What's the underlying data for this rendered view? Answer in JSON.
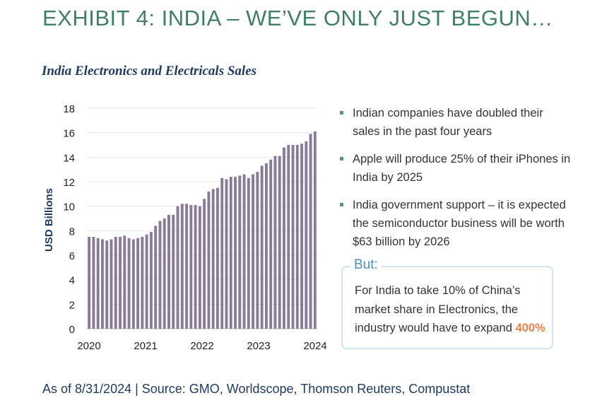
{
  "exhibit_title": "EXHIBIT 4: INDIA – WE’VE ONLY JUST BEGUN…",
  "chart_title": "India Electronics and Electricals Sales",
  "bullets": [
    "Indian companies have doubled their sales in the past four years",
    "Apple will produce 25% of their iPhones in India by 2025",
    "India government support – it is expected the semiconductor business will be worth $63 billion by 2026"
  ],
  "callout": {
    "label": "But:",
    "text": "For India to take 10% of China’s market share in Electronics, the industry would have to expand ",
    "highlight": "400%"
  },
  "footnote": "As of 8/31/2024 | Source: GMO,  Worldscope, Thomson Reuters, Compustat",
  "colors": {
    "bar": "#8a7a9a",
    "title": "#3f7f6a",
    "subtitle": "#1e3a5f",
    "highlight": "#e8834a",
    "callout_border": "#cfe6ee"
  },
  "chart_data": {
    "type": "bar",
    "ylabel": "USD Billions",
    "xlabel": "",
    "ylim": [
      0,
      18
    ],
    "y_ticks": [
      0,
      2,
      4,
      6,
      8,
      10,
      12,
      14,
      16,
      18
    ],
    "x_ticks": [
      "2020",
      "2021",
      "2022",
      "2023",
      "2024"
    ],
    "grid": true,
    "values": [
      7.5,
      7.5,
      7.4,
      7.3,
      7.2,
      7.3,
      7.5,
      7.5,
      7.6,
      7.4,
      7.3,
      7.4,
      7.5,
      7.7,
      7.9,
      8.4,
      8.8,
      9.0,
      9.3,
      9.3,
      10.0,
      10.2,
      10.2,
      10.1,
      10.1,
      10.0,
      10.6,
      11.2,
      11.4,
      11.5,
      12.3,
      12.2,
      12.4,
      12.4,
      12.5,
      12.6,
      12.3,
      12.6,
      12.8,
      13.3,
      13.5,
      13.8,
      14.1,
      14.1,
      14.8,
      15.0,
      15.0,
      15.0,
      15.1,
      15.3,
      15.9,
      16.1
    ]
  }
}
